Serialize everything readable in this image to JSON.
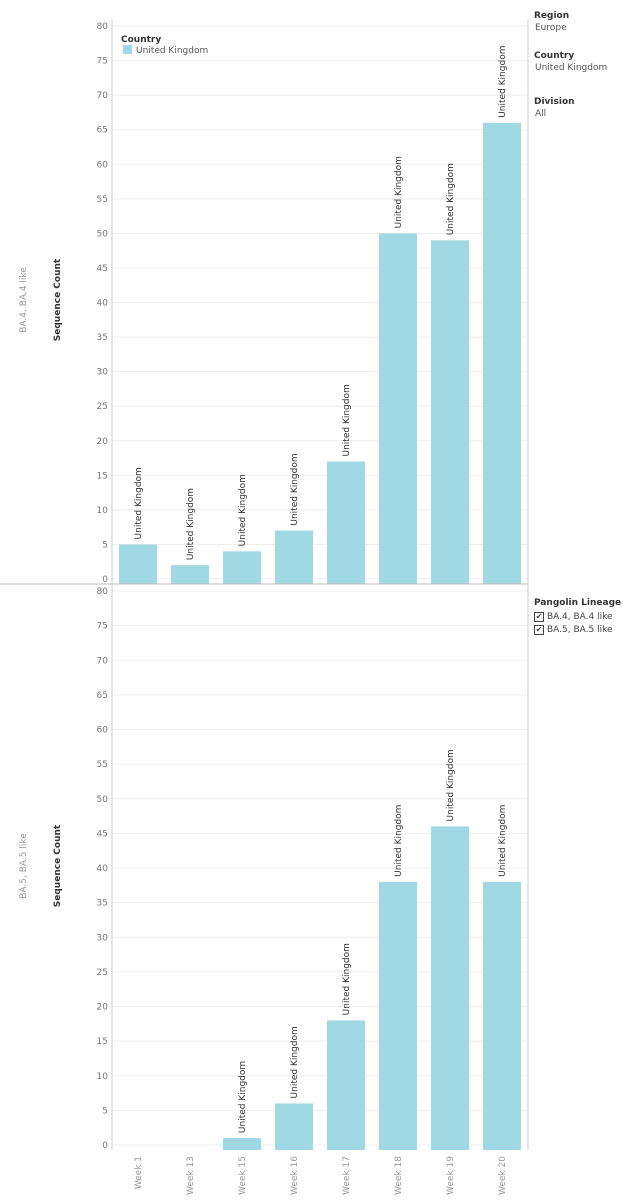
{
  "chart_data": [
    {
      "type": "bar",
      "row_label": "BA.4, BA.4 like",
      "ylabel": "Sequence Count",
      "ylim": [
        0,
        80
      ],
      "yticks": [
        0,
        5,
        10,
        15,
        20,
        25,
        30,
        35,
        40,
        45,
        50,
        55,
        60,
        65,
        70,
        75,
        80
      ],
      "categories": [
        "Week 1",
        "Week 13",
        "Week 15",
        "Week 16",
        "Week 17",
        "Week 18",
        "Week 19",
        "Week 20"
      ],
      "series": [
        {
          "name": "United Kingdom",
          "values": [
            5,
            2,
            4,
            7,
            17,
            50,
            49,
            66
          ],
          "labels": [
            "United Kingdom",
            "United Kingdom",
            "United Kingdom",
            "United Kingdom",
            "United Kingdom",
            "United Kingdom",
            "United Kingdom",
            "United Kingdom"
          ]
        }
      ],
      "legend": {
        "title": "Country",
        "placement": "top-left",
        "items": [
          "United Kingdom"
        ]
      },
      "grid": true
    },
    {
      "type": "bar",
      "row_label": "BA.5, BA.5 like",
      "ylabel": "Sequence Count",
      "ylim": [
        0,
        80
      ],
      "yticks": [
        0,
        5,
        10,
        15,
        20,
        25,
        30,
        35,
        40,
        45,
        50,
        55,
        60,
        65,
        70,
        75,
        80
      ],
      "categories": [
        "Week 1",
        "Week 13",
        "Week 15",
        "Week 16",
        "Week 17",
        "Week 18",
        "Week 19",
        "Week 20"
      ],
      "series": [
        {
          "name": "United Kingdom",
          "values": [
            0,
            0,
            1,
            6,
            18,
            38,
            46,
            38
          ],
          "labels": [
            "",
            "",
            "United Kingdom",
            "United Kingdom",
            "United Kingdom",
            "United Kingdom",
            "United Kingdom",
            "United Kingdom"
          ]
        }
      ],
      "grid": true
    }
  ],
  "colors": {
    "bar": "#a0d9e4",
    "grid": "#eeeeee",
    "axis": "#cccccc",
    "tick": "#777777"
  },
  "filters": {
    "region": {
      "title": "Region",
      "value": "Europe"
    },
    "country": {
      "title": "Country",
      "value": "United Kingdom"
    },
    "division": {
      "title": "Division",
      "value": "All"
    },
    "lineage": {
      "title": "Pangolin Lineage",
      "items": [
        "BA.4, BA.4 like",
        "BA.5, BA.5 like"
      ],
      "checked_icon": "checkmark-icon"
    }
  }
}
